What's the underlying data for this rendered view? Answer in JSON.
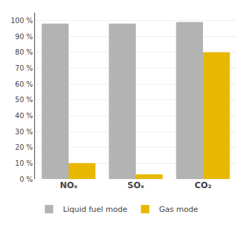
{
  "chart_data": {
    "type": "bar",
    "categories": [
      "NOₓ",
      "SOₓ",
      "CO₂"
    ],
    "series": [
      {
        "name": "Liquid fuel mode",
        "color": "#b3b3b3",
        "values": [
          98,
          98,
          99
        ]
      },
      {
        "name": "Gas mode",
        "color": "#e8b800",
        "values": [
          10,
          3,
          80
        ]
      }
    ],
    "ylim": [
      0,
      105
    ],
    "yticks": [
      {
        "value": 0,
        "label": "0 %"
      },
      {
        "value": 10,
        "label": "10 %"
      },
      {
        "value": 20,
        "label": "20 %"
      },
      {
        "value": 30,
        "label": "30 %"
      },
      {
        "value": 40,
        "label": "40 %"
      },
      {
        "value": 50,
        "label": "50 %"
      },
      {
        "value": 60,
        "label": "60 %"
      },
      {
        "value": 70,
        "label": "70 %"
      },
      {
        "value": 80,
        "label": "80 %"
      },
      {
        "value": 90,
        "label": "90 %"
      },
      {
        "value": 100,
        "label": "100 %"
      }
    ],
    "grid": true,
    "legend": "bottom"
  }
}
